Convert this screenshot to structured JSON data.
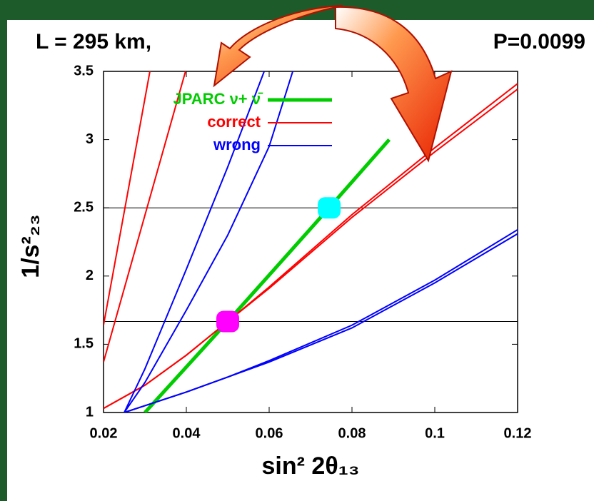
{
  "chart_data": {
    "type": "line",
    "title_left": "L = 295 km,",
    "title_right": "P=0.0099",
    "x_label": "sin² 2θ₁₃",
    "y_label": "1/s²₂₃",
    "xlim": [
      0.02,
      0.12
    ],
    "ylim": [
      1,
      3.5
    ],
    "xticks": [
      0.02,
      0.04,
      0.06,
      0.08,
      0.1,
      0.12
    ],
    "yticks": [
      1,
      1.5,
      2,
      2.5,
      3,
      3.5
    ],
    "hlines": [
      1.667,
      2.5
    ],
    "series": [
      {
        "name": "JPARC ν+ ν̄",
        "color": "#00cc00",
        "width": 5,
        "lines": [
          {
            "x": [
              0.03,
              0.05,
              0.0745,
              0.089
            ],
            "values": [
              1.0,
              1.667,
              2.5,
              3.0
            ]
          }
        ]
      },
      {
        "name": "correct",
        "color": "#ff0000",
        "width": 2,
        "lines": [
          {
            "x": [
              0.02,
              0.03,
              0.04,
              0.05,
              0.06,
              0.08,
              0.1,
              0.12
            ],
            "values": [
              1.03,
              1.2,
              1.42,
              1.667,
              1.92,
              2.45,
              2.94,
              3.41
            ]
          },
          {
            "x": [
              0.02,
              0.03,
              0.04,
              0.05,
              0.06,
              0.08,
              0.1,
              0.12
            ],
            "values": [
              1.03,
              1.2,
              1.42,
              1.667,
              1.91,
              2.43,
              2.91,
              3.37
            ]
          },
          {
            "x": [
              0.02,
              0.0312
            ],
            "values": [
              1.64,
              3.5
            ]
          },
          {
            "x": [
              0.02,
              0.0398
            ],
            "values": [
              1.37,
              3.5
            ]
          }
        ]
      },
      {
        "name": "wrong",
        "color": "#0000ff",
        "width": 2,
        "lines": [
          {
            "x": [
              0.025,
              0.03,
              0.04,
              0.05,
              0.06,
              0.08,
              0.1,
              0.12
            ],
            "values": [
              1.0,
              1.05,
              1.15,
              1.26,
              1.38,
              1.64,
              1.97,
              2.34
            ]
          },
          {
            "x": [
              0.025,
              0.03,
              0.04,
              0.05,
              0.06,
              0.08,
              0.1,
              0.12
            ],
            "values": [
              1.0,
              1.05,
              1.15,
              1.26,
              1.37,
              1.62,
              1.95,
              2.31
            ]
          },
          {
            "x": [
              0.025,
              0.03,
              0.04,
              0.05,
              0.0588
            ],
            "values": [
              1.0,
              1.32,
              2.05,
              2.8,
              3.5
            ]
          },
          {
            "x": [
              0.025,
              0.03,
              0.04,
              0.05,
              0.06,
              0.0657
            ],
            "values": [
              1.0,
              1.22,
              1.75,
              2.3,
              2.95,
              3.5
            ]
          }
        ]
      }
    ],
    "points": [
      {
        "x": 0.05,
        "y": 1.667,
        "color": "#ff00ff"
      },
      {
        "x": 0.0745,
        "y": 2.5,
        "color": "#00ffff"
      }
    ]
  }
}
